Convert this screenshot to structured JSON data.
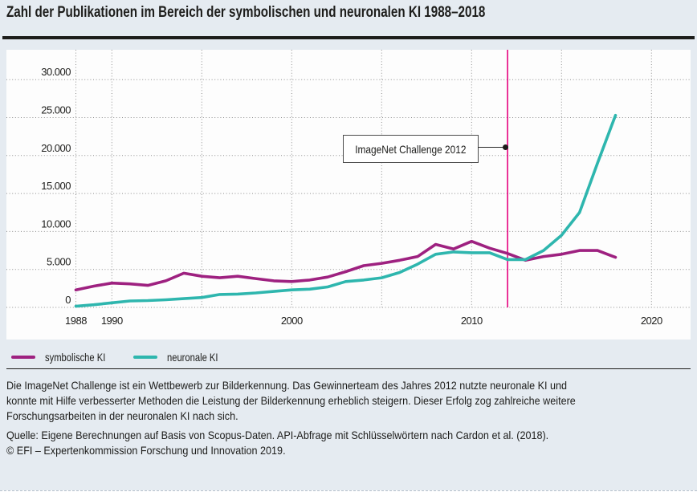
{
  "chart_data": {
    "type": "line",
    "title": "Zahl der Publikationen im Bereich der symbolischen und neuronalen KI 1988–2018",
    "grid": "dotted",
    "legend_position": "bottom-left",
    "ylim": [
      0,
      32000
    ],
    "x": [
      1988,
      1989,
      1990,
      1991,
      1992,
      1993,
      1994,
      1995,
      1996,
      1997,
      1998,
      1999,
      2000,
      2001,
      2002,
      2003,
      2004,
      2005,
      2006,
      2007,
      2008,
      2009,
      2010,
      2011,
      2012,
      2013,
      2014,
      2015,
      2016,
      2017,
      2018
    ],
    "series": [
      {
        "name": "symbolische KI",
        "color": "#9e2180",
        "values": [
          2300,
          2800,
          3200,
          3100,
          2900,
          3500,
          4500,
          4100,
          3900,
          4100,
          3800,
          3500,
          3400,
          3600,
          4000,
          4700,
          5500,
          5800,
          6200,
          6700,
          8300,
          7700,
          8700,
          7800,
          7100,
          6200,
          6700,
          7000,
          7500,
          7500,
          6600
        ]
      },
      {
        "name": "neuronale KI",
        "color": "#2eb6ae",
        "values": [
          150,
          350,
          600,
          850,
          900,
          1000,
          1150,
          1300,
          1700,
          1750,
          1900,
          2100,
          2300,
          2400,
          2700,
          3400,
          3600,
          3900,
          4600,
          5700,
          7000,
          7300,
          7200,
          7200,
          6300,
          6300,
          7500,
          9500,
          12500,
          19000,
          25300
        ]
      }
    ],
    "y_ticks": [
      {
        "value": 0,
        "label": "0"
      },
      {
        "value": 5000,
        "label": "5.000"
      },
      {
        "value": 10000,
        "label": "10.000"
      },
      {
        "value": 15000,
        "label": "15.000"
      },
      {
        "value": 20000,
        "label": "20.000"
      },
      {
        "value": 25000,
        "label": "25.000"
      },
      {
        "value": 30000,
        "label": "30.000"
      }
    ],
    "x_ticks": [
      {
        "year": 1988,
        "label": "1988"
      },
      {
        "year": 1990,
        "label": "1990"
      },
      {
        "year": 2000,
        "label": "2000"
      },
      {
        "year": 2010,
        "label": "2010"
      },
      {
        "year": 2020,
        "label": "2020"
      }
    ],
    "grid_years": [
      1988,
      1990,
      1995,
      2000,
      2005,
      2010,
      2015,
      2020
    ],
    "event_line": {
      "year": 2012,
      "color": "#e6007e"
    },
    "annotation": {
      "label": "ImageNet Challenge 2012",
      "year": 2012
    }
  },
  "footer": {
    "note_lines": [
      "Die ImageNet Challenge ist ein Wettbewerb zur Bilderkennung. Das Gewinnerteam des Jahres 2012 nutzte neuronale KI und",
      "konnte mit Hilfe verbesserter Methoden die Leistung der Bilderkennung erheblich steigern. Dieser Erfolg zog zahlreiche weitere",
      "Forschungsarbeiten in der neuronalen KI nach sich."
    ],
    "source": "Quelle: Eigene Berechnungen auf Basis von Scopus-Daten. API-Abfrage mit Schlüsselwörtern nach Cardon et al. (2018).",
    "copyright": "© EFI – Expertenkommission Forschung und Innovation 2019."
  }
}
